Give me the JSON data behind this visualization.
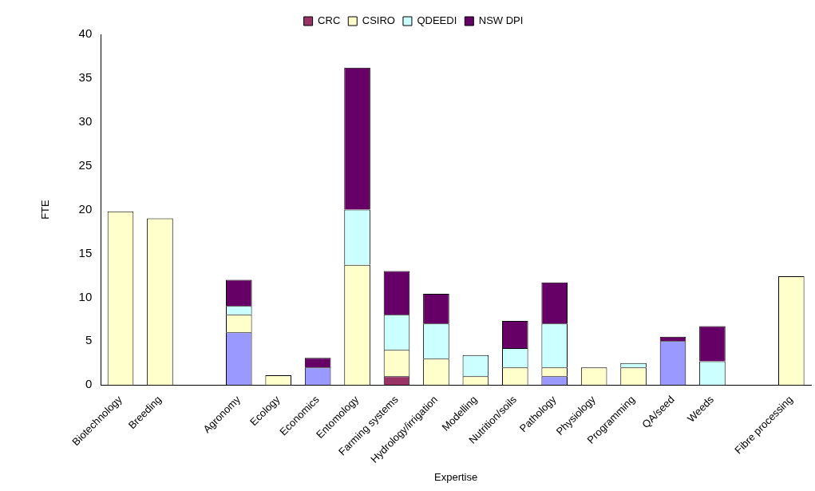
{
  "chart_data": {
    "type": "bar",
    "stacked": true,
    "xlabel": "Expertise",
    "ylabel": "FTE",
    "legend": "top",
    "grid": false,
    "categories": [
      "Biotechnology",
      "Breeding",
      null,
      "Agronomy",
      "Ecology",
      "Economics",
      "Entomology",
      "Farming systems",
      "Hydrology/irrigation",
      "Modelling",
      "Nutrition/soils",
      "Pathology",
      "Physiology",
      "Programming",
      "QA/seed",
      "Weeds",
      null,
      "Fibre processing"
    ],
    "series": [
      {
        "color": "#9999ff",
        "values": [
          0,
          0,
          0,
          6,
          0,
          2,
          0,
          0,
          0,
          0,
          0,
          1,
          0,
          0,
          5,
          0,
          0,
          0
        ]
      },
      {
        "name": "CRC",
        "color": "#993366",
        "values": [
          0,
          0,
          0,
          0,
          0,
          0,
          0,
          1,
          0,
          0,
          0,
          0,
          0,
          0,
          0,
          0,
          0,
          0
        ]
      },
      {
        "name": "CSIRO",
        "color": "#ffffcc",
        "values": [
          19.8,
          19,
          0,
          2,
          1.1,
          0,
          13.7,
          3,
          3,
          1,
          2,
          1,
          2,
          2,
          0,
          0,
          0,
          12.4
        ]
      },
      {
        "name": "QDEEDI",
        "color": "#ccffff",
        "values": [
          0,
          0,
          0,
          1,
          0,
          0,
          6.3,
          4,
          4,
          2.4,
          2.2,
          5,
          0,
          0.5,
          0,
          2.7,
          0,
          0
        ]
      },
      {
        "name": "NSW DPI",
        "color": "#660066",
        "values": [
          0,
          0,
          0,
          3,
          0,
          1.1,
          16.2,
          5,
          3.4,
          0,
          3.1,
          4.7,
          0,
          0,
          0.5,
          4,
          0,
          0
        ]
      }
    ],
    "ylim": [
      0,
      40
    ],
    "yticks": [
      0,
      5,
      10,
      15,
      20,
      25,
      30,
      35,
      40
    ]
  }
}
